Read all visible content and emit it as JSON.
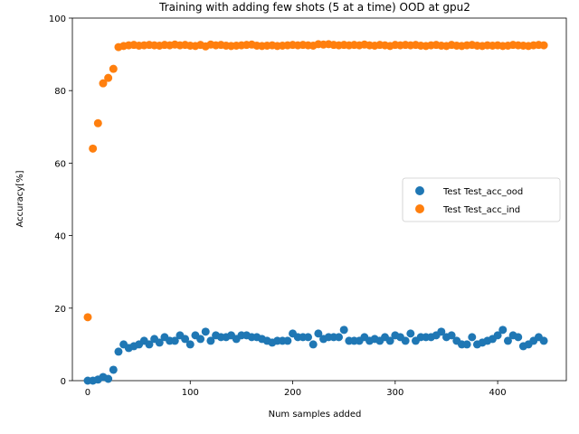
{
  "chart_data": {
    "type": "scatter",
    "title": "Training with adding few shots (5 at a time) OOD at gpu2",
    "xlabel": "Num samples added",
    "ylabel": "Accuracy[%]",
    "xlim": [
      -15,
      467
    ],
    "ylim": [
      0,
      100
    ],
    "xticks": [
      0,
      100,
      200,
      300,
      400
    ],
    "yticks": [
      0,
      20,
      40,
      60,
      80,
      100
    ],
    "grid": false,
    "legend_position": "center-right",
    "series": [
      {
        "name": "Test Test_acc_ood",
        "color": "#1f77b4",
        "x": [
          0,
          5,
          10,
          15,
          20,
          25,
          30,
          35,
          40,
          45,
          50,
          55,
          60,
          65,
          70,
          75,
          80,
          85,
          90,
          95,
          100,
          105,
          110,
          115,
          120,
          125,
          130,
          135,
          140,
          145,
          150,
          155,
          160,
          165,
          170,
          175,
          180,
          185,
          190,
          195,
          200,
          205,
          210,
          215,
          220,
          225,
          230,
          235,
          240,
          245,
          250,
          255,
          260,
          265,
          270,
          275,
          280,
          285,
          290,
          295,
          300,
          305,
          310,
          315,
          320,
          325,
          330,
          335,
          340,
          345,
          350,
          355,
          360,
          365,
          370,
          375,
          380,
          385,
          390,
          395,
          400,
          405,
          410,
          415,
          420,
          425,
          430,
          435,
          440,
          445
        ],
        "y": [
          0,
          0,
          0.3,
          1,
          0.5,
          3,
          8,
          10,
          9,
          9.5,
          10,
          11,
          10,
          11.5,
          10.5,
          12,
          11,
          11,
          12.5,
          11.5,
          10,
          12.5,
          11.5,
          13.5,
          11,
          12.5,
          12,
          12,
          12.5,
          11.5,
          12.5,
          12.5,
          12,
          12,
          11.5,
          11,
          10.5,
          11,
          11,
          11,
          13,
          12,
          12,
          12,
          10,
          13,
          11.5,
          12,
          12,
          12,
          14,
          11,
          11,
          11,
          12,
          11,
          11.5,
          11,
          12,
          11,
          12.5,
          12,
          11,
          13,
          11,
          12,
          12,
          12,
          12.5,
          13.5,
          12,
          12.5,
          11,
          10,
          10,
          12,
          10,
          10.5,
          11,
          11.5,
          12.5,
          14,
          11,
          12.5,
          12,
          9.5,
          10,
          11,
          12,
          11
        ]
      },
      {
        "name": "Test Test_acc_ind",
        "color": "#ff7f0e",
        "x": [
          0,
          5,
          10,
          15,
          20,
          25,
          30,
          35,
          40,
          45,
          50,
          55,
          60,
          65,
          70,
          75,
          80,
          85,
          90,
          95,
          100,
          105,
          110,
          115,
          120,
          125,
          130,
          135,
          140,
          145,
          150,
          155,
          160,
          165,
          170,
          175,
          180,
          185,
          190,
          195,
          200,
          205,
          210,
          215,
          220,
          225,
          230,
          235,
          240,
          245,
          250,
          255,
          260,
          265,
          270,
          275,
          280,
          285,
          290,
          295,
          300,
          305,
          310,
          315,
          320,
          325,
          330,
          335,
          340,
          345,
          350,
          355,
          360,
          365,
          370,
          375,
          380,
          385,
          390,
          395,
          400,
          405,
          410,
          415,
          420,
          425,
          430,
          435,
          440,
          445
        ],
        "y": [
          17.5,
          64,
          71,
          82,
          83.5,
          86,
          92,
          92.3,
          92.5,
          92.6,
          92.4,
          92.5,
          92.6,
          92.5,
          92.4,
          92.6,
          92.5,
          92.7,
          92.5,
          92.6,
          92.4,
          92.3,
          92.6,
          92.2,
          92.7,
          92.5,
          92.6,
          92.4,
          92.3,
          92.4,
          92.5,
          92.6,
          92.7,
          92.4,
          92.3,
          92.4,
          92.5,
          92.3,
          92.4,
          92.5,
          92.6,
          92.5,
          92.6,
          92.5,
          92.4,
          92.8,
          92.7,
          92.8,
          92.6,
          92.5,
          92.6,
          92.5,
          92.6,
          92.5,
          92.7,
          92.5,
          92.4,
          92.6,
          92.5,
          92.3,
          92.6,
          92.5,
          92.6,
          92.5,
          92.6,
          92.4,
          92.3,
          92.5,
          92.6,
          92.4,
          92.3,
          92.6,
          92.4,
          92.3,
          92.5,
          92.6,
          92.4,
          92.3,
          92.5,
          92.4,
          92.5,
          92.3,
          92.4,
          92.6,
          92.5,
          92.4,
          92.3,
          92.5,
          92.6,
          92.5
        ]
      }
    ]
  }
}
